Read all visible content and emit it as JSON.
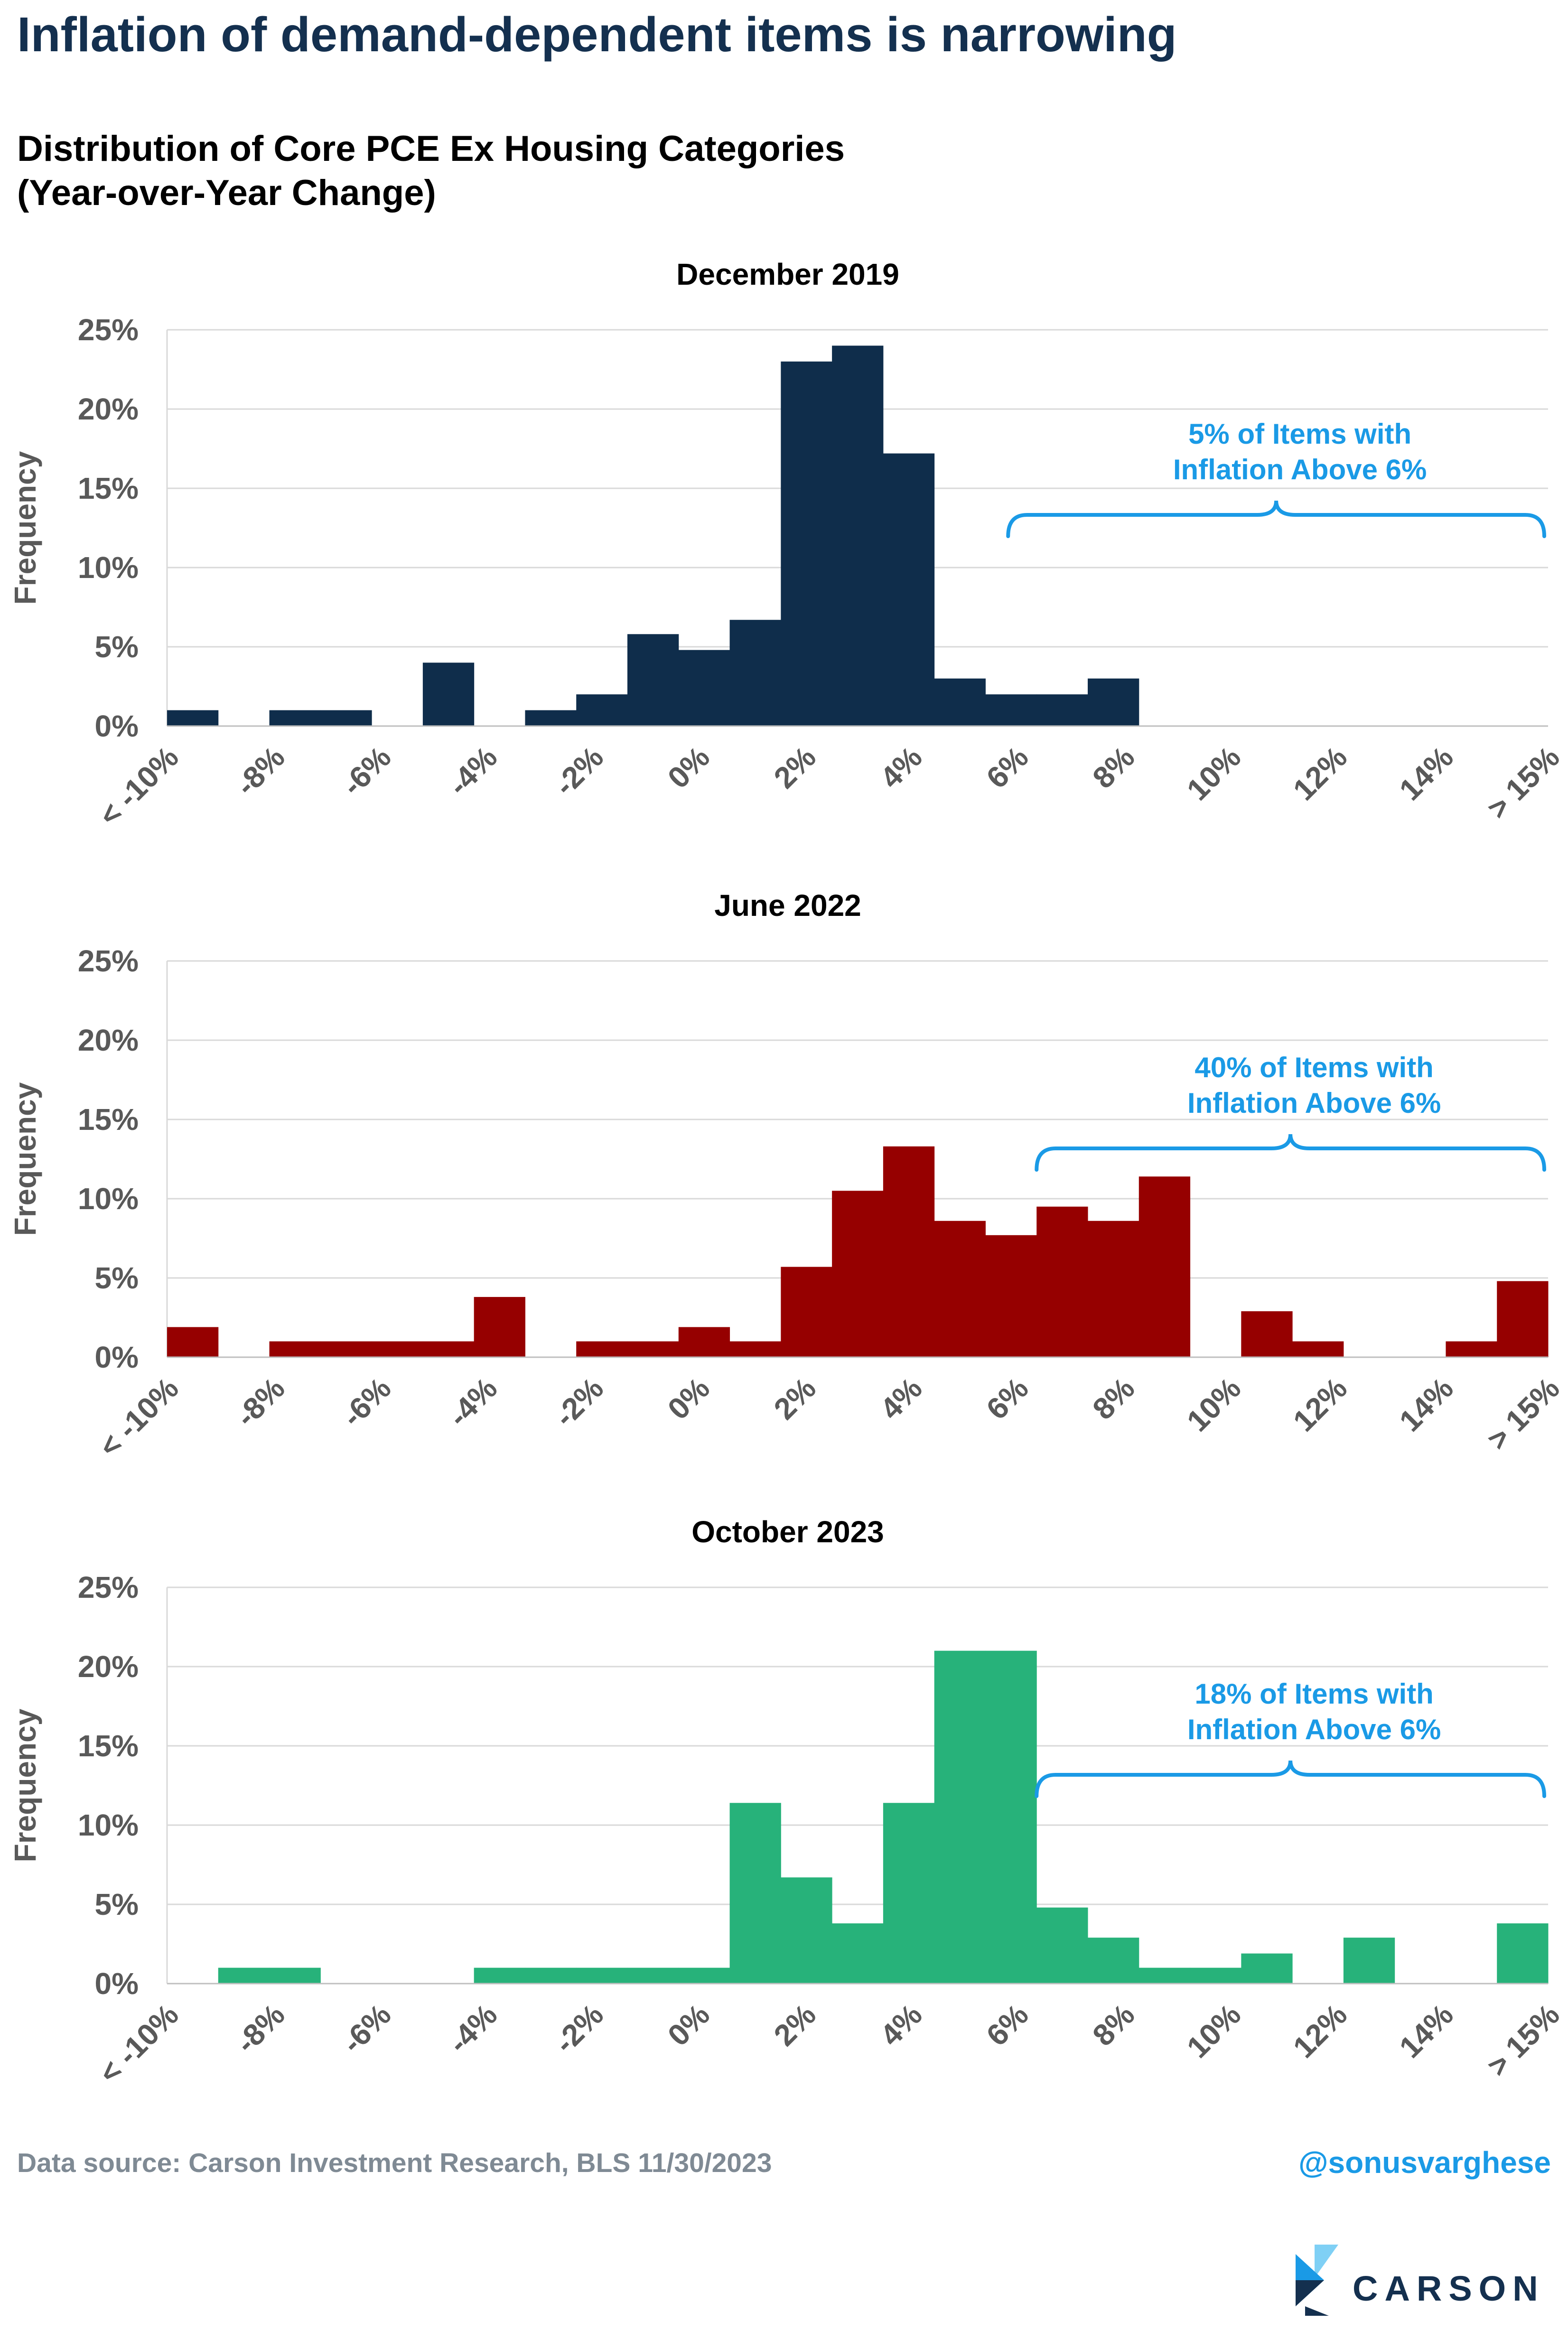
{
  "header": {
    "title": "Inflation of demand-dependent items is narrowing",
    "subtitle_line1": "Distribution of Core PCE Ex Housing Categories",
    "subtitle_line2": "(Year-over-Year Change)"
  },
  "footer": {
    "source": "Data source: Carson Investment Research, BLS   11/30/2023",
    "handle": "@sonusvarghese",
    "logo_text": "CARSON"
  },
  "chart_data": [
    {
      "type": "bar",
      "title": "December 2019",
      "ylabel": "Frequency",
      "xlabel": "",
      "color": "#0f2d4b",
      "ylim": [
        0,
        25
      ],
      "y_ticks": [
        "0%",
        "5%",
        "10%",
        "15%",
        "20%",
        "25%"
      ],
      "x_ticks": [
        "< -10%",
        "-8%",
        "-6%",
        "-4%",
        "-2%",
        "0%",
        "2%",
        "4%",
        "6%",
        "8%",
        "10%",
        "12%",
        "14%",
        "> 15%"
      ],
      "values": [
        1,
        0,
        1,
        1,
        0,
        4,
        0,
        1,
        2,
        5.8,
        4.8,
        6.7,
        23,
        24,
        17.2,
        3,
        2,
        2,
        3,
        0,
        0,
        0,
        0,
        0,
        0,
        0,
        0
      ],
      "annotation": {
        "line1": "5% of Items with",
        "line2": "Inflation Above 6%"
      },
      "grid": true
    },
    {
      "type": "bar",
      "title": "June 2022",
      "ylabel": "Frequency",
      "xlabel": "",
      "color": "#960000",
      "ylim": [
        0,
        25
      ],
      "y_ticks": [
        "0%",
        "5%",
        "10%",
        "15%",
        "20%",
        "25%"
      ],
      "x_ticks": [
        "< -10%",
        "-8%",
        "-6%",
        "-4%",
        "-2%",
        "0%",
        "2%",
        "4%",
        "6%",
        "8%",
        "10%",
        "12%",
        "14%",
        "> 15%"
      ],
      "values": [
        1.9,
        0,
        1,
        1,
        1,
        1,
        3.8,
        0,
        1,
        1,
        1.9,
        1,
        5.7,
        10.5,
        13.3,
        8.6,
        7.7,
        9.5,
        8.6,
        11.4,
        0,
        2.9,
        1,
        0,
        0,
        1,
        4.8
      ],
      "annotation": {
        "line1": "40% of Items with",
        "line2": "Inflation Above 6%"
      },
      "grid": true
    },
    {
      "type": "bar",
      "title": "October 2023",
      "ylabel": "Frequency",
      "xlabel": "",
      "color": "#27b27a",
      "ylim": [
        0,
        25
      ],
      "y_ticks": [
        "0%",
        "5%",
        "10%",
        "15%",
        "20%",
        "25%"
      ],
      "x_ticks": [
        "< -10%",
        "-8%",
        "-6%",
        "-4%",
        "-2%",
        "0%",
        "2%",
        "4%",
        "6%",
        "8%",
        "10%",
        "12%",
        "14%",
        "> 15%"
      ],
      "values": [
        0,
        1,
        1,
        0,
        0,
        0,
        1,
        1,
        1,
        1,
        1,
        11.4,
        6.7,
        3.8,
        11.4,
        21,
        21,
        4.8,
        2.9,
        1,
        1,
        1.9,
        0,
        2.9,
        0,
        0,
        3.8
      ],
      "annotation": {
        "line1": "18% of Items with",
        "line2": "Inflation Above 6%"
      },
      "grid": true
    }
  ],
  "colors": {
    "title": "#14304f",
    "annotation": "#1a9ae6",
    "grid": "#d9d9d9",
    "tick_text": "#595959"
  }
}
